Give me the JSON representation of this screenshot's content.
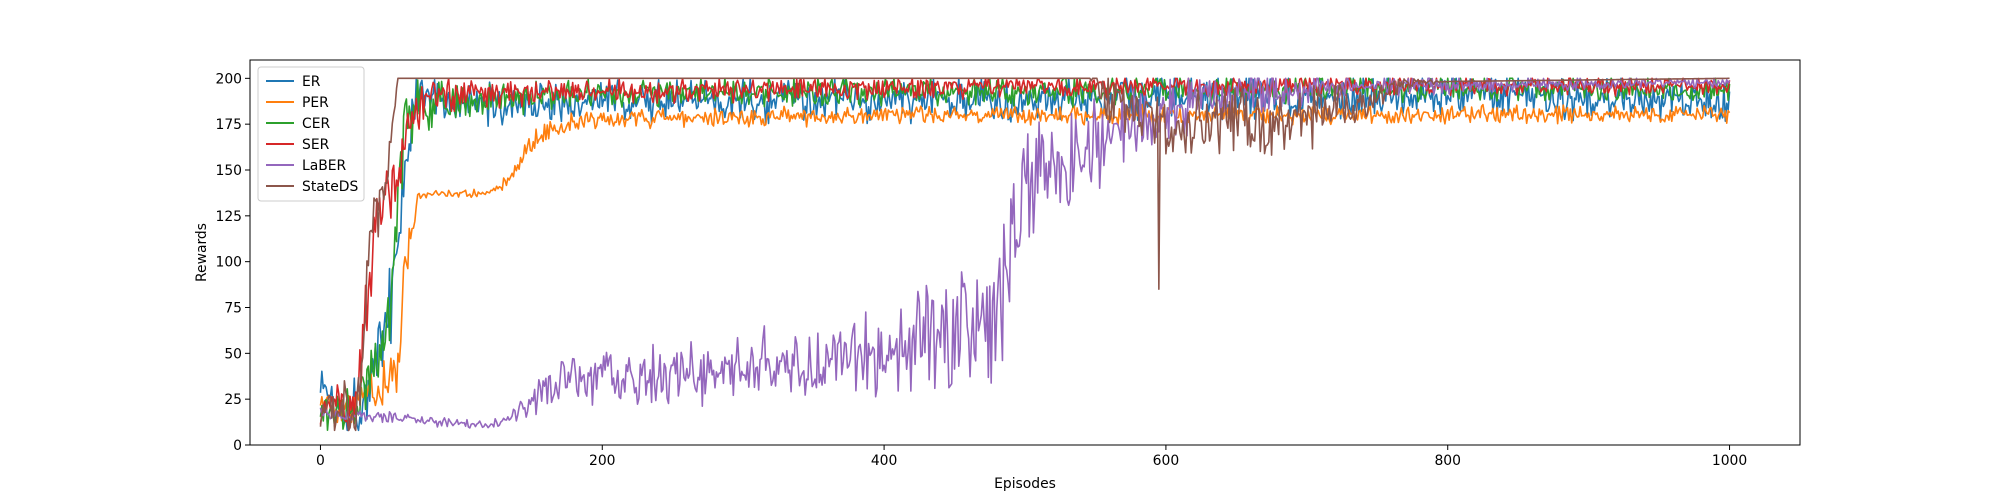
{
  "chart_data": {
    "type": "line",
    "title": "",
    "xlabel": "Episodes",
    "ylabel": "Rewards",
    "xlim": [
      -50,
      1050
    ],
    "ylim": [
      0,
      210
    ],
    "xticks": [
      0,
      200,
      400,
      600,
      800,
      1000
    ],
    "yticks": [
      0,
      25,
      50,
      75,
      100,
      125,
      150,
      175,
      200
    ],
    "grid": false,
    "legend_position": "top-left",
    "n_episodes": 1000,
    "series": [
      {
        "name": "ER",
        "color": "#1f77b4",
        "keypoints": [
          [
            0,
            36
          ],
          [
            10,
            22
          ],
          [
            20,
            18
          ],
          [
            30,
            25
          ],
          [
            40,
            45
          ],
          [
            50,
            80
          ],
          [
            60,
            150
          ],
          [
            70,
            198
          ],
          [
            80,
            190
          ],
          [
            100,
            185
          ],
          [
            200,
            188
          ],
          [
            400,
            188
          ],
          [
            600,
            190
          ],
          [
            800,
            192
          ],
          [
            1000,
            188
          ]
        ],
        "noise": [
          [
            0,
            12
          ],
          [
            60,
            30
          ],
          [
            75,
            14
          ],
          [
            600,
            14
          ],
          [
            1000,
            14
          ]
        ]
      },
      {
        "name": "PER",
        "color": "#ff7f0e",
        "keypoints": [
          [
            0,
            20
          ],
          [
            20,
            20
          ],
          [
            40,
            30
          ],
          [
            55,
            40
          ],
          [
            60,
            100
          ],
          [
            70,
            137
          ],
          [
            120,
            137
          ],
          [
            130,
            142
          ],
          [
            150,
            165
          ],
          [
            170,
            175
          ],
          [
            200,
            178
          ],
          [
            400,
            180
          ],
          [
            600,
            180
          ],
          [
            800,
            180
          ],
          [
            1000,
            180
          ]
        ],
        "noise": [
          [
            0,
            10
          ],
          [
            60,
            15
          ],
          [
            70,
            3
          ],
          [
            120,
            3
          ],
          [
            150,
            10
          ],
          [
            200,
            6
          ],
          [
            1000,
            6
          ]
        ]
      },
      {
        "name": "CER",
        "color": "#2ca02c",
        "keypoints": [
          [
            0,
            18
          ],
          [
            20,
            18
          ],
          [
            40,
            40
          ],
          [
            50,
            80
          ],
          [
            60,
            170
          ],
          [
            70,
            185
          ],
          [
            100,
            188
          ],
          [
            200,
            192
          ],
          [
            400,
            193
          ],
          [
            600,
            193
          ],
          [
            800,
            195
          ],
          [
            1000,
            193
          ]
        ],
        "noise": [
          [
            0,
            10
          ],
          [
            55,
            30
          ],
          [
            70,
            18
          ],
          [
            120,
            10
          ],
          [
            1000,
            8
          ]
        ]
      },
      {
        "name": "SER",
        "color": "#d62728",
        "keypoints": [
          [
            0,
            20
          ],
          [
            25,
            25
          ],
          [
            35,
            90
          ],
          [
            40,
            130
          ],
          [
            55,
            145
          ],
          [
            65,
            180
          ],
          [
            80,
            192
          ],
          [
            200,
            193
          ],
          [
            600,
            196
          ],
          [
            1000,
            196
          ]
        ],
        "noise": [
          [
            0,
            10
          ],
          [
            40,
            25
          ],
          [
            70,
            15
          ],
          [
            150,
            8
          ],
          [
            1000,
            6
          ]
        ]
      },
      {
        "name": "LaBER",
        "color": "#9467bd",
        "keypoints": [
          [
            0,
            18
          ],
          [
            20,
            15
          ],
          [
            50,
            15
          ],
          [
            100,
            12
          ],
          [
            120,
            11
          ],
          [
            140,
            17
          ],
          [
            160,
            30
          ],
          [
            200,
            38
          ],
          [
            280,
            40
          ],
          [
            350,
            45
          ],
          [
            400,
            48
          ],
          [
            450,
            60
          ],
          [
            480,
            75
          ],
          [
            500,
            140
          ],
          [
            540,
            160
          ],
          [
            560,
            170
          ],
          [
            600,
            185
          ],
          [
            700,
            195
          ],
          [
            1000,
            198
          ]
        ],
        "noise": [
          [
            0,
            4
          ],
          [
            120,
            3
          ],
          [
            180,
            18
          ],
          [
            300,
            22
          ],
          [
            420,
            30
          ],
          [
            480,
            50
          ],
          [
            560,
            28
          ],
          [
            650,
            15
          ],
          [
            750,
            6
          ],
          [
            1000,
            3
          ]
        ]
      },
      {
        "name": "StateDS",
        "color": "#8c564b",
        "keypoints": [
          [
            0,
            18
          ],
          [
            25,
            20
          ],
          [
            30,
            60
          ],
          [
            35,
            110
          ],
          [
            45,
            140
          ],
          [
            55,
            200
          ],
          [
            550,
            200
          ],
          [
            560,
            190
          ],
          [
            600,
            175
          ],
          [
            700,
            180
          ],
          [
            740,
            185
          ],
          [
            770,
            198
          ],
          [
            1000,
            200
          ]
        ],
        "noise": [
          [
            0,
            10
          ],
          [
            30,
            30
          ],
          [
            50,
            12
          ],
          [
            55,
            0
          ],
          [
            545,
            0
          ],
          [
            560,
            22
          ],
          [
            700,
            22
          ],
          [
            760,
            6
          ],
          [
            800,
            0
          ],
          [
            1000,
            0
          ]
        ],
        "spikes": [
          [
            595,
            85
          ]
        ]
      }
    ]
  }
}
